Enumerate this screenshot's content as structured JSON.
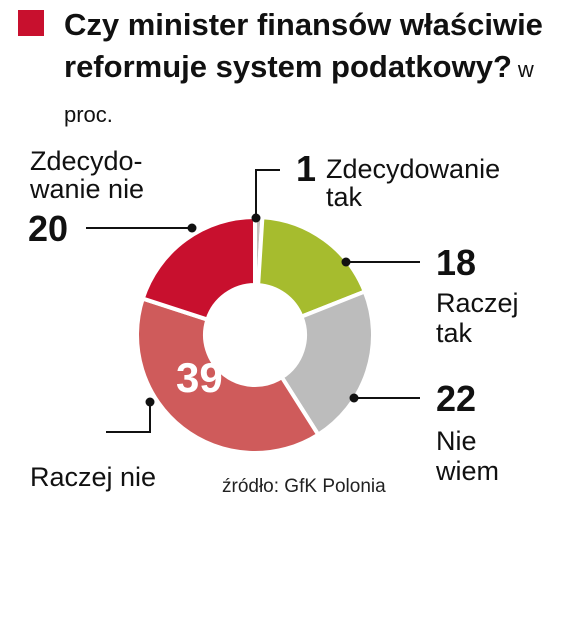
{
  "header": {
    "title": "Czy minister finansów właściwie reformuje system podatkowy?",
    "unit": "w proc."
  },
  "source": "źródło: GfK Polonia",
  "chart_data": {
    "type": "pie",
    "title": "Czy minister finansów właściwie reformuje system podatkowy?",
    "unit": "w proc.",
    "slices": [
      {
        "label": "Zdecydowanie tak",
        "value": 1,
        "color": "#c4c0bd"
      },
      {
        "label": "Raczej tak",
        "value": 18,
        "color": "#a6bc2e"
      },
      {
        "label": "Nie wiem",
        "value": 22,
        "color": "#bcbcbc"
      },
      {
        "label": "Raczej nie",
        "value": 39,
        "color": "#cf5b5b"
      },
      {
        "label": "Zdecydowanie nie",
        "value": 20,
        "color": "#c8102e"
      }
    ]
  },
  "labels": {
    "zt_value": "1",
    "zt_line1": "Zdecydowanie",
    "zt_line2": "tak",
    "rt_value": "18",
    "rt_line1": "Raczej",
    "rt_line2": "tak",
    "nw_value": "22",
    "nw_line1": "Nie",
    "nw_line2": "wiem",
    "rn_value": "39",
    "rn_label": "Raczej nie",
    "zn_value": "20",
    "zn_line1": "Zdecydo-",
    "zn_line2": "wanie nie"
  }
}
